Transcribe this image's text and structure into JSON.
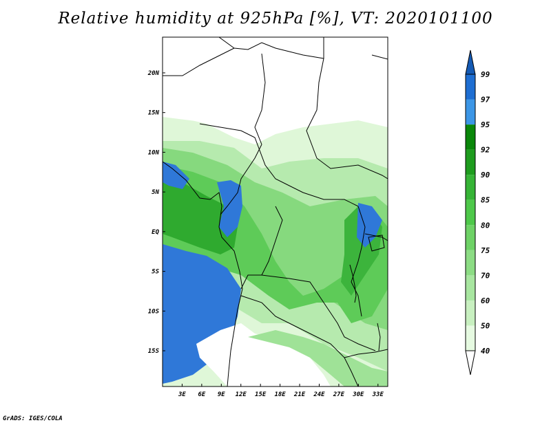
{
  "title": "Relative humidity at 925hPa [%], VT: 2020101100",
  "credit": "GrADS: IGES/COLA",
  "map": {
    "lon_range": [
      0,
      34.5
    ],
    "lat_range": [
      -19.5,
      24.5
    ],
    "lat_ticks": [
      {
        "value": 20,
        "label": "20N"
      },
      {
        "value": 15,
        "label": "15N"
      },
      {
        "value": 10,
        "label": "10N"
      },
      {
        "value": 5,
        "label": "5N"
      },
      {
        "value": 0,
        "label": "EQ"
      },
      {
        "value": -5,
        "label": "5S"
      },
      {
        "value": -10,
        "label": "10S"
      },
      {
        "value": -15,
        "label": "15S"
      }
    ],
    "lon_ticks": [
      {
        "value": 3,
        "label": "3E"
      },
      {
        "value": 6,
        "label": "6E"
      },
      {
        "value": 9,
        "label": "9E"
      },
      {
        "value": 12,
        "label": "12E"
      },
      {
        "value": 15,
        "label": "15E"
      },
      {
        "value": 18,
        "label": "18E"
      },
      {
        "value": 21,
        "label": "21E"
      },
      {
        "value": 24,
        "label": "24E"
      },
      {
        "value": 27,
        "label": "27E"
      },
      {
        "value": 30,
        "label": "30E"
      },
      {
        "value": 33,
        "label": "33E"
      }
    ]
  },
  "colorbar": {
    "levels": [
      "40",
      "50",
      "60",
      "70",
      "75",
      "80",
      "85",
      "90",
      "92",
      "95",
      "97",
      "99"
    ],
    "colors": [
      "#ffffff",
      "#e6fae1",
      "#c8f0c0",
      "#a8e6a0",
      "#8cdc84",
      "#6ed266",
      "#4ec84a",
      "#36b436",
      "#1e9c1e",
      "#0a870a",
      "#3c96e6",
      "#1e6ed2",
      "#145ab4"
    ]
  }
}
